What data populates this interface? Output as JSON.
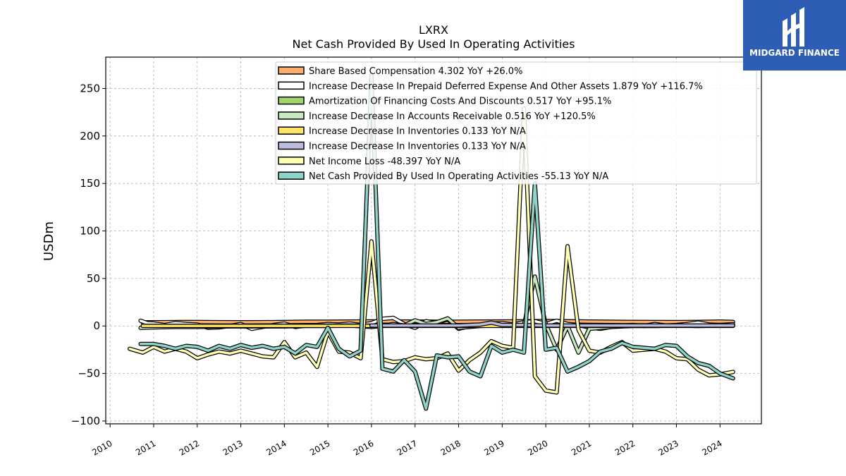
{
  "chart_data": {
    "type": "line",
    "title": "LXRX",
    "subtitle": "Net Cash Provided By Used In Operating Activities",
    "ylabel": "USDm",
    "xlabel": "",
    "ylim": [
      -103,
      283
    ],
    "xlim": [
      2009.9,
      2024.95
    ],
    "yticks": [
      -100,
      -50,
      0,
      50,
      100,
      150,
      200,
      250
    ],
    "ytick_labels": [
      "−100",
      "−50",
      "0",
      "50",
      "100",
      "150",
      "200",
      "250"
    ],
    "xticks": [
      2010,
      2011,
      2012,
      2013,
      2014,
      2015,
      2016,
      2017,
      2018,
      2019,
      2020,
      2021,
      2022,
      2023,
      2024
    ],
    "xtick_labels": [
      "2010",
      "2011",
      "2012",
      "2013",
      "2014",
      "2015",
      "2016",
      "2017",
      "2018",
      "2019",
      "2020",
      "2021",
      "2022",
      "2023",
      "2024"
    ],
    "grid": true,
    "legend_position": "top-right",
    "series": [
      {
        "name": "Share Based Compensation",
        "legend": "Share Based Compensation  4.302 YoY +26.0%",
        "color": "#fdae6b",
        "x": [
          2010.75,
          2011.0,
          2011.5,
          2012.0,
          2012.5,
          2013.0,
          2013.5,
          2014.0,
          2014.5,
          2015.0,
          2015.5,
          2016.0,
          2016.5,
          2017.0,
          2017.5,
          2018.0,
          2018.5,
          2019.0,
          2019.5,
          2020.0,
          2020.5,
          2021.0,
          2021.5,
          2022.0,
          2022.5,
          2023.0,
          2023.5,
          2024.0,
          2024.3
        ],
        "y": [
          3.8,
          3.9,
          4.1,
          4.2,
          4.0,
          3.9,
          4.0,
          4.2,
          4.5,
          4.4,
          4.6,
          4.8,
          4.7,
          4.6,
          4.5,
          4.4,
          4.6,
          4.7,
          4.9,
          5.2,
          5.0,
          4.6,
          4.4,
          4.3,
          4.2,
          4.1,
          4.3,
          4.6,
          4.3
        ]
      },
      {
        "name": "Increase Decrease In Prepaid Deferred Expense And Other Assets",
        "legend": "Increase Decrease In Prepaid Deferred Expense And Other Assets  1.879 YoY +116.7%",
        "color": "#ffffff",
        "x": [
          2010.7,
          2010.85,
          2011.0,
          2011.25,
          2011.5,
          2011.75,
          2012.0,
          2012.25,
          2012.5,
          2012.75,
          2013.0,
          2013.25,
          2013.5,
          2013.75,
          2014.0,
          2014.25,
          2014.5,
          2014.75,
          2015.0,
          2015.25,
          2015.5,
          2015.75,
          2016.0,
          2016.25,
          2016.5,
          2016.75,
          2017.0,
          2017.25,
          2017.5,
          2017.75,
          2018.0,
          2018.25,
          2018.5,
          2018.75,
          2019.0,
          2019.25,
          2019.5,
          2019.75,
          2020.0,
          2020.25,
          2020.5,
          2020.75,
          2021.0,
          2021.25,
          2021.5,
          2021.75,
          2022.0,
          2022.25,
          2022.5,
          2022.75,
          2023.0,
          2023.25,
          2023.5,
          2023.75,
          2024.0,
          2024.3
        ],
        "y": [
          5.5,
          3.0,
          2.5,
          1.0,
          3.0,
          2.0,
          1.5,
          -2.0,
          -1.5,
          0.0,
          2.0,
          -3.0,
          -1.0,
          1.0,
          2.5,
          -1.0,
          0.5,
          1.0,
          2.0,
          1.5,
          2.5,
          1.0,
          3.0,
          7.5,
          8.5,
          2.0,
          -2.0,
          5.0,
          3.0,
          7.0,
          -3.0,
          0.0,
          1.0,
          2.5,
          3.0,
          1.5,
          4.0,
          5.0,
          2.0,
          5.5,
          2.0,
          1.0,
          -1.5,
          -3.0,
          -1.0,
          0.5,
          1.0,
          0.0,
          2.0,
          0.5,
          1.0,
          2.0,
          3.5,
          1.5,
          1.0,
          1.9
        ]
      },
      {
        "name": "Amortization Of Financing Costs And Discounts",
        "legend": "Amortization Of Financing Costs And Discounts  0.517 YoY +95.1%",
        "color": "#a1d76a",
        "x": [
          2010.75,
          2011.5,
          2012.5,
          2013.5,
          2014.5,
          2015.5,
          2016.5,
          2017.5,
          2018.5,
          2019.5,
          2020.5,
          2021.5,
          2022.5,
          2023.5,
          2024.3
        ],
        "y": [
          0.2,
          0.2,
          0.2,
          0.3,
          0.3,
          0.3,
          0.3,
          0.3,
          0.3,
          0.3,
          0.4,
          0.4,
          0.4,
          0.4,
          0.5
        ]
      },
      {
        "name": "Increase Decrease In Accounts Receivable",
        "legend": "Increase Decrease In Accounts Receivable  0.516 YoY +120.5%",
        "color": "#c7e9c0",
        "x": [
          2010.7,
          2011.0,
          2011.5,
          2012.0,
          2012.5,
          2013.0,
          2013.5,
          2014.0,
          2014.5,
          2015.0,
          2015.5,
          2016.0,
          2016.25,
          2016.5,
          2016.75,
          2017.0,
          2017.25,
          2017.5,
          2017.75,
          2018.0,
          2018.5,
          2019.0,
          2019.5,
          2019.75,
          2020.0,
          2020.25,
          2020.5,
          2020.75,
          2021.0,
          2021.5,
          2022.0,
          2022.5,
          2023.0,
          2023.5,
          2024.0,
          2024.3
        ],
        "y": [
          -2.0,
          -1.5,
          -1.0,
          -1.0,
          -0.5,
          -0.5,
          -0.5,
          -0.5,
          0.0,
          0.0,
          0.5,
          -1.0,
          0.0,
          2.0,
          0.5,
          6.0,
          2.0,
          4.0,
          8.0,
          -2.0,
          0.0,
          1.0,
          1.0,
          52.0,
          2.0,
          -25.0,
          0.0,
          -28.0,
          -3.0,
          -1.0,
          0.0,
          0.0,
          0.5,
          0.0,
          0.5,
          0.5
        ]
      },
      {
        "name": "Increase Decrease In Inventories",
        "legend": "Increase Decrease In Inventories  0.133 YoY N/A",
        "color": "#fee566",
        "x": [
          2010.75,
          2011.5,
          2012.5,
          2013.5,
          2014.5,
          2015.5,
          2016.5,
          2017.5,
          2018.5,
          2019.5,
          2020.5,
          2021.5,
          2022.5,
          2023.5,
          2024.3
        ],
        "y": [
          0.1,
          0.1,
          0.1,
          0.1,
          0.1,
          0.1,
          0.1,
          0.1,
          0.1,
          0.1,
          0.1,
          0.1,
          0.1,
          0.1,
          0.133
        ]
      },
      {
        "name": "Increase Decrease In Inventories",
        "legend": "Increase Decrease In Inventories  0.133 YoY N/A",
        "color": "#bcbddc",
        "x": [
          2016.0,
          2016.5,
          2017.0,
          2017.5,
          2018.0,
          2018.5,
          2018.75,
          2019.0,
          2019.5,
          2020.0,
          2020.5,
          2021.0,
          2021.5,
          2022.0,
          2022.5,
          2023.0,
          2023.5,
          2024.0,
          2024.3
        ],
        "y": [
          0.5,
          0.5,
          0.5,
          0.5,
          0.5,
          1.5,
          3.5,
          1.0,
          1.0,
          0.5,
          0.5,
          0.5,
          0.5,
          0.5,
          0.5,
          0.5,
          0.5,
          0.5,
          0.5
        ]
      },
      {
        "name": "Net Income Loss",
        "legend": "Net Income Loss  -48.397 YoY N/A",
        "color": "#ffffb3",
        "x": [
          2010.45,
          2010.75,
          2011.0,
          2011.25,
          2011.5,
          2011.75,
          2012.0,
          2012.25,
          2012.5,
          2012.75,
          2013.0,
          2013.25,
          2013.5,
          2013.75,
          2014.0,
          2014.25,
          2014.5,
          2014.75,
          2015.0,
          2015.25,
          2015.5,
          2015.75,
          2016.0,
          2016.25,
          2016.5,
          2016.75,
          2017.0,
          2017.25,
          2017.5,
          2017.75,
          2018.0,
          2018.25,
          2018.5,
          2018.75,
          2019.0,
          2019.25,
          2019.5,
          2019.75,
          2020.0,
          2020.25,
          2020.5,
          2020.75,
          2021.0,
          2021.25,
          2021.5,
          2021.75,
          2022.0,
          2022.25,
          2022.5,
          2022.75,
          2023.0,
          2023.25,
          2023.5,
          2023.75,
          2024.0,
          2024.3
        ],
        "y": [
          -24.0,
          -28.0,
          -22.0,
          -27.0,
          -24.0,
          -27.0,
          -34.0,
          -30.0,
          -27.0,
          -29.0,
          -26.0,
          -29.0,
          -32.0,
          -33.0,
          -17.0,
          -33.0,
          -28.0,
          -43.0,
          -6.0,
          -27.0,
          -28.0,
          -34.0,
          89.0,
          -35.0,
          -38.0,
          -37.0,
          -33.0,
          -35.0,
          -34.0,
          -29.0,
          -47.0,
          -36.0,
          -28.0,
          -16.0,
          -21.0,
          -23.0,
          229.0,
          -53.0,
          -68.0,
          -70.0,
          84.0,
          -4.0,
          -26.0,
          -28.0,
          -22.0,
          -17.0,
          -26.0,
          -25.0,
          -24.0,
          -27.0,
          -34.0,
          -35.0,
          -46.0,
          -52.0,
          -51.0,
          -48.4
        ]
      },
      {
        "name": "Net Cash Provided By Used In Operating Activities",
        "legend": "Net Cash Provided By Used In Operating Activities  -55.13 YoY N/A",
        "color": "#8dd3c7",
        "x": [
          2010.7,
          2011.0,
          2011.25,
          2011.5,
          2011.75,
          2012.0,
          2012.25,
          2012.5,
          2012.75,
          2013.0,
          2013.25,
          2013.5,
          2013.75,
          2014.0,
          2014.25,
          2014.5,
          2014.75,
          2015.0,
          2015.25,
          2015.5,
          2015.75,
          2016.0,
          2016.25,
          2016.5,
          2016.75,
          2017.0,
          2017.25,
          2017.5,
          2017.75,
          2018.0,
          2018.25,
          2018.5,
          2018.75,
          2019.0,
          2019.25,
          2019.5,
          2019.75,
          2020.0,
          2020.25,
          2020.5,
          2020.75,
          2021.0,
          2021.25,
          2021.5,
          2021.75,
          2022.0,
          2022.25,
          2022.5,
          2022.75,
          2023.0,
          2023.25,
          2023.5,
          2023.75,
          2024.0,
          2024.3
        ],
        "y": [
          -19.0,
          -19.0,
          -21.0,
          -24.0,
          -21.0,
          -22.0,
          -26.0,
          -21.0,
          -24.0,
          -20.0,
          -23.0,
          -21.0,
          -24.0,
          -22.0,
          -29.0,
          -20.0,
          -22.0,
          -2.0,
          -24.0,
          -32.0,
          -26.0,
          264.0,
          -45.0,
          -48.0,
          -36.0,
          -48.0,
          -87.0,
          -31.0,
          -33.0,
          -32.0,
          -48.0,
          -53.0,
          -21.0,
          -28.0,
          -25.0,
          -28.0,
          150.0,
          -25.0,
          -23.0,
          -48.0,
          -43.0,
          -37.0,
          -27.0,
          -24.0,
          -18.0,
          -22.0,
          -23.0,
          -24.0,
          -20.0,
          -21.0,
          -32.0,
          -39.0,
          -42.0,
          -50.0,
          -55.13
        ]
      }
    ]
  },
  "logo": {
    "text": "MIDGARD FINANCE"
  }
}
